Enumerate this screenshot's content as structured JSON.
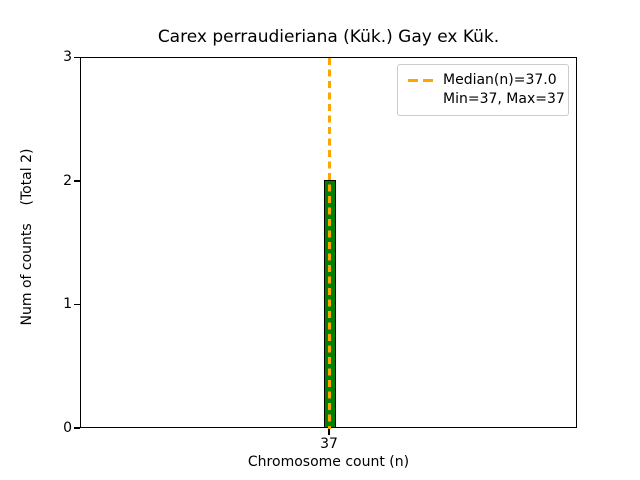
{
  "chart_data": {
    "type": "bar",
    "title": "Carex perraudieriana (Kük.) Gay ex Kük.",
    "xlabel": "Chromosome count (n)",
    "ylabel": "Num of counts    (Total 2)",
    "categories": [
      "37"
    ],
    "values": [
      2
    ],
    "total_counts": 2,
    "ylim": [
      0,
      3
    ],
    "yticks": [
      "0",
      "1",
      "2",
      "3"
    ],
    "xticks": [
      "37"
    ],
    "bar_color": "#008000",
    "bar_edge_color": "#000000",
    "median_line": {
      "value": 37.0,
      "color": "#FFA500",
      "style": "dashed",
      "orientation": "vertical"
    },
    "legend": {
      "position": "upper right",
      "entries": [
        {
          "label": "Median(n)=37.0",
          "sample": "orange-dashed-line"
        },
        {
          "label": "Min=37, Max=37",
          "sample": "none"
        }
      ]
    },
    "grid": false
  }
}
